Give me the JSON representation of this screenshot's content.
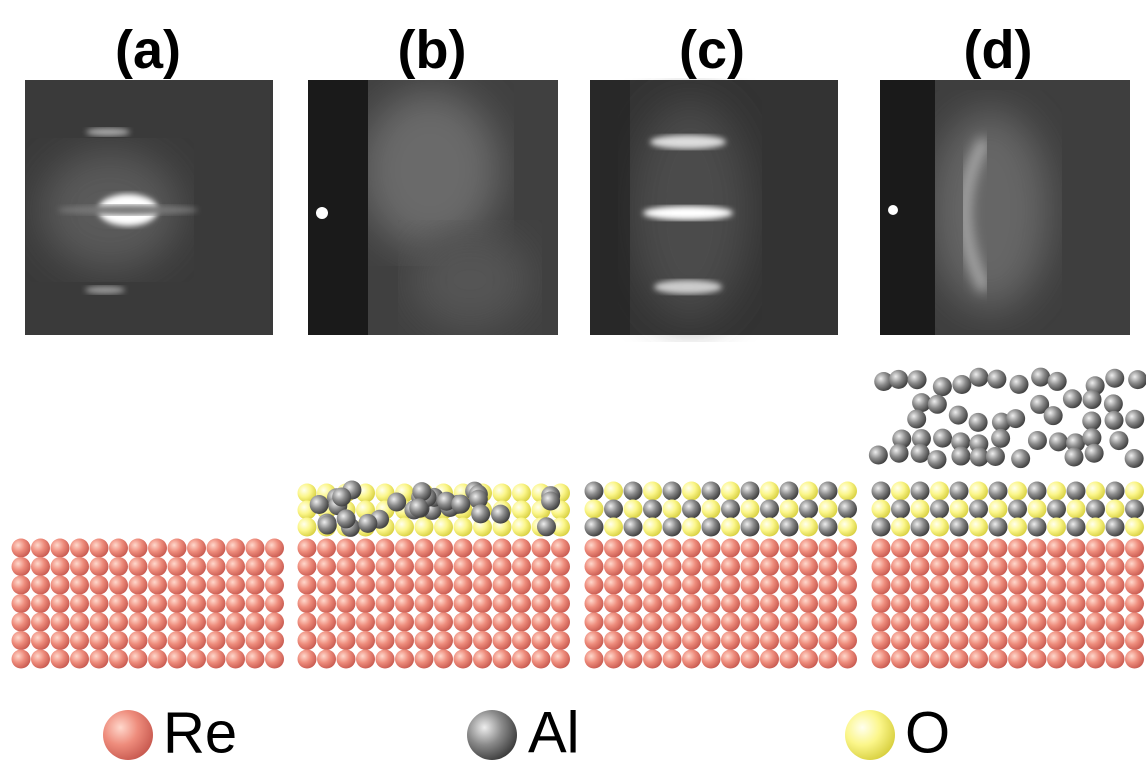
{
  "panels": [
    {
      "label": "(a)"
    },
    {
      "label": "(b)"
    },
    {
      "label": "(c)"
    },
    {
      "label": "(d)"
    }
  ],
  "legend": [
    {
      "label": "Re"
    },
    {
      "label": "Al"
    },
    {
      "label": "O"
    }
  ]
}
